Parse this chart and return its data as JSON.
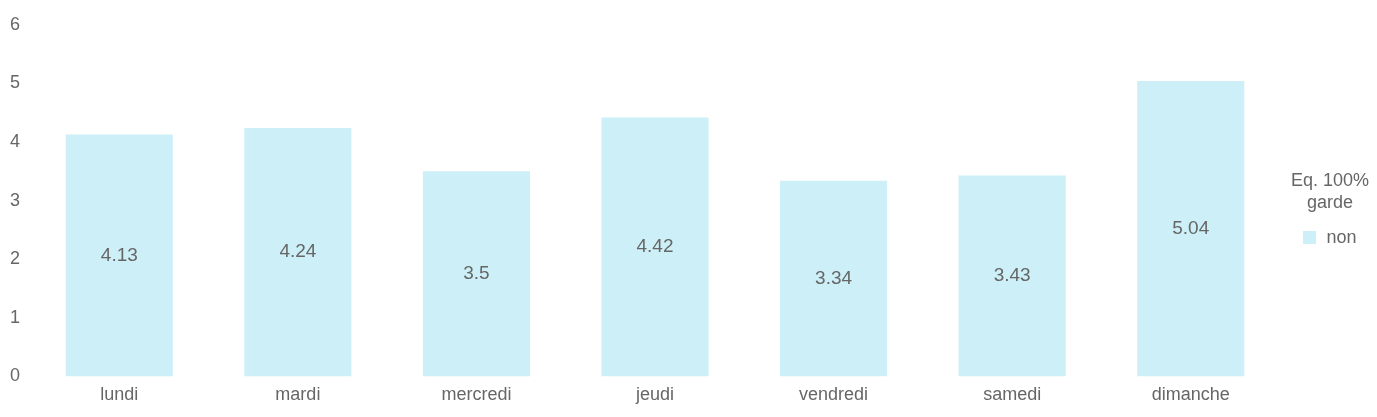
{
  "chart_data": {
    "type": "bar",
    "categories": [
      "lundi",
      "mardi",
      "mercredi",
      "jeudi",
      "vendredi",
      "samedi",
      "dimanche"
    ],
    "series": [
      {
        "name": "non",
        "color": "#cdf0f8",
        "values": [
          4.13,
          4.24,
          3.5,
          4.42,
          3.34,
          3.43,
          5.04
        ]
      }
    ],
    "ylim": [
      0,
      6
    ],
    "yticks": [
      0,
      1,
      2,
      3,
      4,
      5,
      6
    ],
    "grid": false,
    "legend": "right",
    "legend_title": "Eq. 100% garde",
    "data_labels": true
  }
}
